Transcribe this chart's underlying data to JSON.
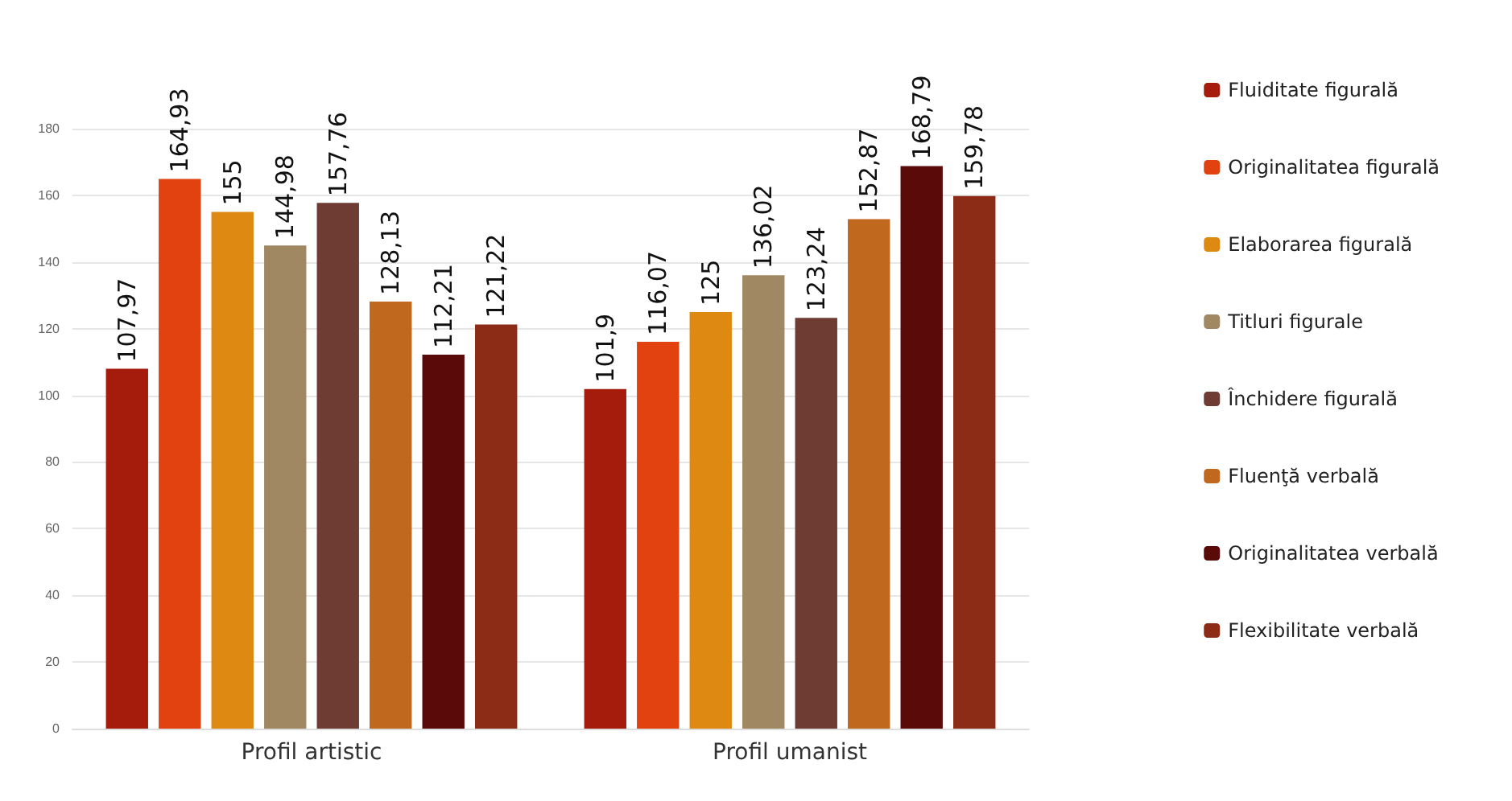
{
  "chart_data": {
    "type": "bar",
    "categories": [
      "Profil artistic",
      "Profil umanist"
    ],
    "series": [
      {
        "name": "Fluiditate figurală",
        "color": "#a51c0c",
        "values": [
          107.97,
          101.9
        ],
        "value_labels": [
          "107,97",
          "101,9"
        ]
      },
      {
        "name": "Originalitatea figurală",
        "color": "#e2420f",
        "values": [
          164.93,
          116.07
        ],
        "value_labels": [
          "164,93",
          "116,07"
        ]
      },
      {
        "name": "Elaborarea figurală",
        "color": "#de8a12",
        "values": [
          155,
          125
        ],
        "value_labels": [
          "155",
          "125"
        ]
      },
      {
        "name": "Titluri figurale",
        "color": "#a08862",
        "values": [
          144.98,
          136.02
        ],
        "value_labels": [
          "144,98",
          "136,02"
        ]
      },
      {
        "name": "Închidere figurală",
        "color": "#6e3c32",
        "values": [
          157.76,
          123.24
        ],
        "value_labels": [
          "157,76",
          "123,24"
        ]
      },
      {
        "name": "Fluenţă verbală",
        "color": "#c0681e",
        "values": [
          128.13,
          152.87
        ],
        "value_labels": [
          "128,13",
          "152,87"
        ]
      },
      {
        "name": "Originalitatea verbală",
        "color": "#5a0a08",
        "values": [
          112.21,
          168.79
        ],
        "value_labels": [
          "112,21",
          "168,79"
        ]
      },
      {
        "name": "Flexibilitate verbală",
        "color": "#8c2c16",
        "values": [
          121.22,
          159.78
        ],
        "value_labels": [
          "121,22",
          "159,78"
        ]
      }
    ],
    "ylim": [
      0,
      180
    ],
    "yticks": [
      0,
      20,
      40,
      60,
      80,
      100,
      120,
      140,
      160,
      180
    ],
    "grid": "y",
    "legend": "right"
  }
}
